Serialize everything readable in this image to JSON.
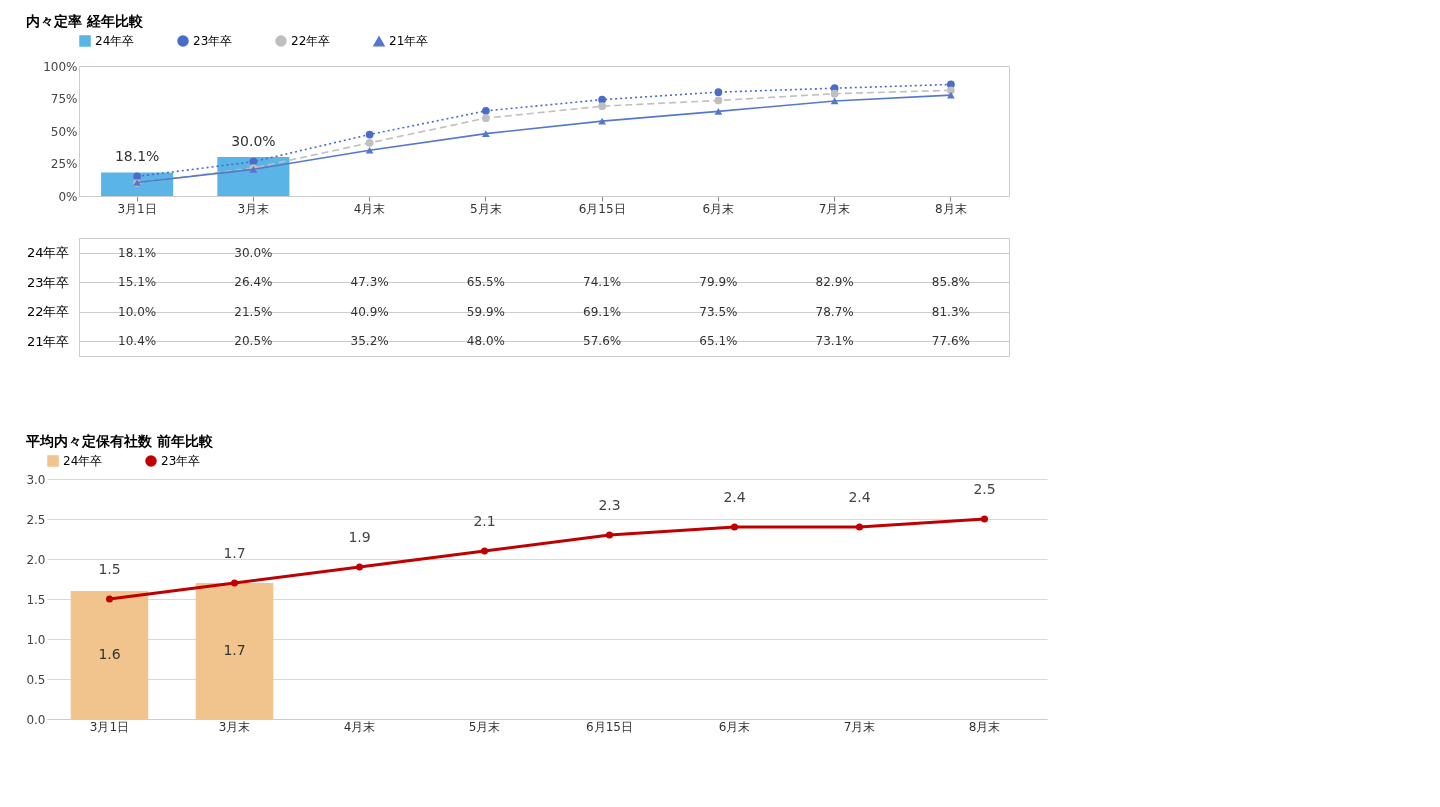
{
  "chart_data": [
    {
      "type": "line",
      "title": "内々定率 経年比較",
      "categories": [
        "3月1日",
        "3月末",
        "4月末",
        "5月末",
        "6月15日",
        "6月末",
        "7月末",
        "8月末"
      ],
      "series": [
        {
          "name": "24年卒",
          "type": "bar",
          "color": "#5ab4e6",
          "values": [
            18.1,
            30.0,
            null,
            null,
            null,
            null,
            null,
            null
          ],
          "value_labels": [
            "18.1%",
            "30.0%",
            null,
            null,
            null,
            null,
            null,
            null
          ]
        },
        {
          "name": "23年卒",
          "color": "#4a6cc8",
          "marker": "circle",
          "line_style": "dotted",
          "values": [
            15.1,
            26.4,
            47.3,
            65.5,
            74.1,
            79.9,
            82.9,
            85.8
          ],
          "value_labels": [
            "15.1%",
            "26.4%",
            "47.3%",
            "65.5%",
            "74.1%",
            "79.9%",
            "82.9%",
            "85.8%"
          ]
        },
        {
          "name": "22年卒",
          "color": "#bfbfbf",
          "marker": "circle",
          "line_style": "dashed",
          "values": [
            10.0,
            21.5,
            40.9,
            59.9,
            69.1,
            73.5,
            78.7,
            81.3
          ],
          "value_labels": [
            "10.0%",
            "21.5%",
            "40.9%",
            "59.9%",
            "69.1%",
            "73.5%",
            "78.7%",
            "81.3%"
          ]
        },
        {
          "name": "21年卒",
          "color": "#5577cc",
          "marker": "triangle",
          "line_style": "solid",
          "values": [
            10.4,
            20.5,
            35.2,
            48.0,
            57.6,
            65.1,
            73.1,
            77.6
          ],
          "value_labels": [
            "10.4%",
            "20.5%",
            "35.2%",
            "48.0%",
            "57.6%",
            "65.1%",
            "73.1%",
            "77.6%"
          ]
        }
      ],
      "ylim": [
        0,
        100
      ],
      "yticks": [
        {
          "value": 0,
          "label": "0%"
        },
        {
          "value": 25,
          "label": "25%"
        },
        {
          "value": 50,
          "label": "50%"
        },
        {
          "value": 75,
          "label": "75%"
        },
        {
          "value": 100,
          "label": "100%"
        }
      ],
      "grid": false,
      "legend": "top"
    },
    {
      "type": "line",
      "title": "平均内々定保有社数 前年比較",
      "categories": [
        "3月1日",
        "3月末",
        "4月末",
        "5月末",
        "6月15日",
        "6月末",
        "7月末",
        "8月末"
      ],
      "series": [
        {
          "name": "24年卒",
          "type": "bar",
          "color": "#f0c48c",
          "values": [
            1.6,
            1.7,
            null,
            null,
            null,
            null,
            null,
            null
          ]
        },
        {
          "name": "23年卒",
          "color": "#c00000",
          "marker": "circle",
          "line_style": "solid",
          "values": [
            1.5,
            1.7,
            1.9,
            2.1,
            2.3,
            2.4,
            2.4,
            2.5
          ]
        }
      ],
      "ylim": [
        0,
        3
      ],
      "yticks": [
        {
          "value": 0,
          "label": "0.0"
        },
        {
          "value": 0.5,
          "label": "0.5"
        },
        {
          "value": 1,
          "label": "1.0"
        },
        {
          "value": 1.5,
          "label": "1.5"
        },
        {
          "value": 2,
          "label": "2.0"
        },
        {
          "value": 2.5,
          "label": "2.5"
        },
        {
          "value": 3,
          "label": "3.0"
        }
      ],
      "grid": "y",
      "legend": "top",
      "data_labels": true
    }
  ]
}
